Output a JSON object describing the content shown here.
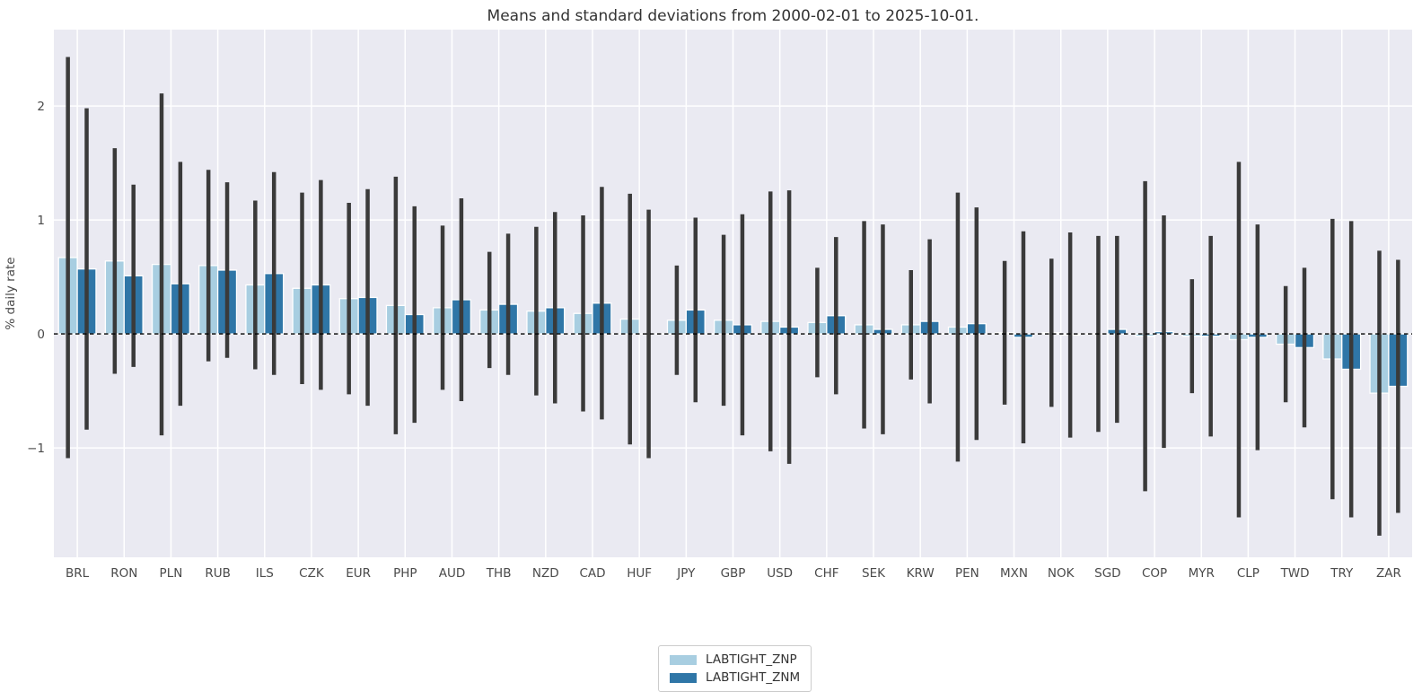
{
  "title": "Means and standard deviations from 2000-02-01 to 2025-10-01.",
  "colors": {
    "plot_background": "#eaeaf2",
    "grid": "#ffffff",
    "error_bar": "#3a3a3a",
    "zero_line": "#000000",
    "tick_label": "#4a4a4a",
    "title_text": "#333333"
  },
  "legend": {
    "items": [
      {
        "label": "LABTIGHT_ZNP",
        "color": "#a8cee1"
      },
      {
        "label": "LABTIGHT_ZNM",
        "color": "#2f76a7"
      }
    ]
  },
  "chart_data": {
    "type": "bar",
    "title": "Means and standard deviations from 2000-02-01 to 2025-10-01.",
    "xlabel": "",
    "ylabel": "% daily rate",
    "categories": [
      "BRL",
      "RON",
      "PLN",
      "RUB",
      "ILS",
      "CZK",
      "EUR",
      "PHP",
      "AUD",
      "THB",
      "NZD",
      "CAD",
      "HUF",
      "JPY",
      "GBP",
      "USD",
      "CHF",
      "SEK",
      "KRW",
      "PEN",
      "MXN",
      "NOK",
      "SGD",
      "COP",
      "MYR",
      "CLP",
      "TWD",
      "TRY",
      "ZAR"
    ],
    "series": [
      {
        "name": "LABTIGHT_ZNP",
        "color": "#a8cee1",
        "means": [
          0.67,
          0.64,
          0.61,
          0.6,
          0.43,
          0.4,
          0.31,
          0.25,
          0.23,
          0.21,
          0.2,
          0.18,
          0.13,
          0.12,
          0.12,
          0.11,
          0.1,
          0.08,
          0.08,
          0.06,
          0.01,
          0.01,
          0.0,
          -0.02,
          -0.02,
          -0.05,
          -0.09,
          -0.22,
          -0.52
        ],
        "stds": [
          1.76,
          0.99,
          1.5,
          0.84,
          0.74,
          0.84,
          0.84,
          1.13,
          0.72,
          0.51,
          0.74,
          0.86,
          1.1,
          0.48,
          0.75,
          1.14,
          0.48,
          0.91,
          0.48,
          1.18,
          0.63,
          0.65,
          0.86,
          1.36,
          0.5,
          1.56,
          0.51,
          1.23,
          1.25
        ]
      },
      {
        "name": "LABTIGHT_ZNM",
        "color": "#2f76a7",
        "means": [
          0.57,
          0.51,
          0.44,
          0.56,
          0.53,
          0.43,
          0.32,
          0.17,
          0.3,
          0.26,
          0.23,
          0.27,
          0.0,
          0.21,
          0.08,
          0.06,
          0.16,
          0.04,
          0.11,
          0.09,
          -0.03,
          -0.01,
          0.04,
          0.02,
          -0.02,
          -0.03,
          -0.12,
          -0.31,
          -0.46
        ],
        "stds": [
          1.41,
          0.8,
          1.07,
          0.77,
          0.89,
          0.92,
          0.95,
          0.95,
          0.89,
          0.62,
          0.84,
          1.02,
          1.09,
          0.81,
          0.97,
          1.2,
          0.69,
          0.92,
          0.72,
          1.02,
          0.93,
          0.9,
          0.82,
          1.02,
          0.88,
          0.99,
          0.7,
          1.3,
          1.11
        ]
      }
    ],
    "yticks": [
      -1,
      0,
      1,
      2
    ],
    "ylim": [
      -1.96,
      2.67
    ],
    "grid": true,
    "zero_line": "dashed",
    "error_bars": "mean±std",
    "legend_position": "bottom-center"
  }
}
